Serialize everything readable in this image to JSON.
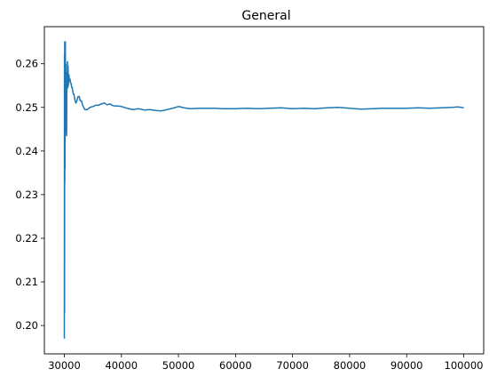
{
  "chart_data": {
    "type": "line",
    "title": "General",
    "xlabel": "",
    "ylabel": "",
    "xlim": [
      26500,
      103500
    ],
    "ylim": [
      0.1935,
      0.2685
    ],
    "x_ticks": [
      30000,
      40000,
      50000,
      60000,
      70000,
      80000,
      90000,
      100000
    ],
    "y_ticks": [
      0.2,
      0.21,
      0.22,
      0.23,
      0.24,
      0.25,
      0.26
    ],
    "x_tick_labels": [
      "30000",
      "40000",
      "50000",
      "60000",
      "70000",
      "80000",
      "90000",
      "100000"
    ],
    "y_tick_labels": [
      "0.20",
      "0.21",
      "0.22",
      "0.23",
      "0.24",
      "0.25",
      "0.26"
    ],
    "grid": false,
    "legend": "none",
    "color": "#1f77b4",
    "series": [
      {
        "x": [
          30000,
          30020,
          30040,
          30060,
          30080,
          30100,
          30120,
          30140,
          30160,
          30180,
          30200,
          30250,
          30300,
          30350,
          30400,
          30450,
          30500,
          30550,
          30600,
          30650,
          30700,
          30800,
          30900,
          31000,
          31100,
          31200,
          31300,
          31400,
          31500,
          31600,
          31700,
          31800,
          31900,
          32000,
          32200,
          32400,
          32600,
          32800,
          33000,
          33200,
          33400,
          33600,
          33800,
          34000,
          34500,
          35000,
          35500,
          36000,
          36500,
          37000,
          37500,
          38000,
          38500,
          39000,
          39500,
          40000,
          41000,
          42000,
          43000,
          44000,
          45000,
          46000,
          47000,
          48000,
          49000,
          50000,
          51000,
          52000,
          54000,
          56000,
          58000,
          60000,
          62000,
          64000,
          66000,
          68000,
          70000,
          72000,
          74000,
          76000,
          78000,
          80000,
          82000,
          84000,
          86000,
          88000,
          90000,
          92000,
          94000,
          96000,
          98000,
          99000,
          100000
        ],
        "y": [
          0.197,
          0.262,
          0.203,
          0.265,
          0.233,
          0.26,
          0.236,
          0.258,
          0.244,
          0.265,
          0.246,
          0.26,
          0.244,
          0.258,
          0.2435,
          0.258,
          0.255,
          0.2605,
          0.2545,
          0.2595,
          0.255,
          0.2575,
          0.256,
          0.2565,
          0.2555,
          0.2555,
          0.2545,
          0.2545,
          0.2535,
          0.253,
          0.253,
          0.252,
          0.2515,
          0.251,
          0.2515,
          0.2525,
          0.2525,
          0.2515,
          0.2515,
          0.2505,
          0.25,
          0.2495,
          0.2495,
          0.2495,
          0.25,
          0.2502,
          0.2505,
          0.2505,
          0.2508,
          0.251,
          0.2506,
          0.2508,
          0.2504,
          0.2503,
          0.2503,
          0.2502,
          0.2498,
          0.2495,
          0.2497,
          0.2494,
          0.2495,
          0.2493,
          0.2492,
          0.2495,
          0.2498,
          0.2502,
          0.2499,
          0.2497,
          0.2498,
          0.2498,
          0.2497,
          0.2497,
          0.2498,
          0.2497,
          0.2498,
          0.2499,
          0.2497,
          0.2498,
          0.2497,
          0.2499,
          0.25,
          0.2498,
          0.2496,
          0.2497,
          0.2498,
          0.2498,
          0.2498,
          0.2499,
          0.2498,
          0.2499,
          0.25,
          0.2501,
          0.2499
        ]
      }
    ]
  }
}
